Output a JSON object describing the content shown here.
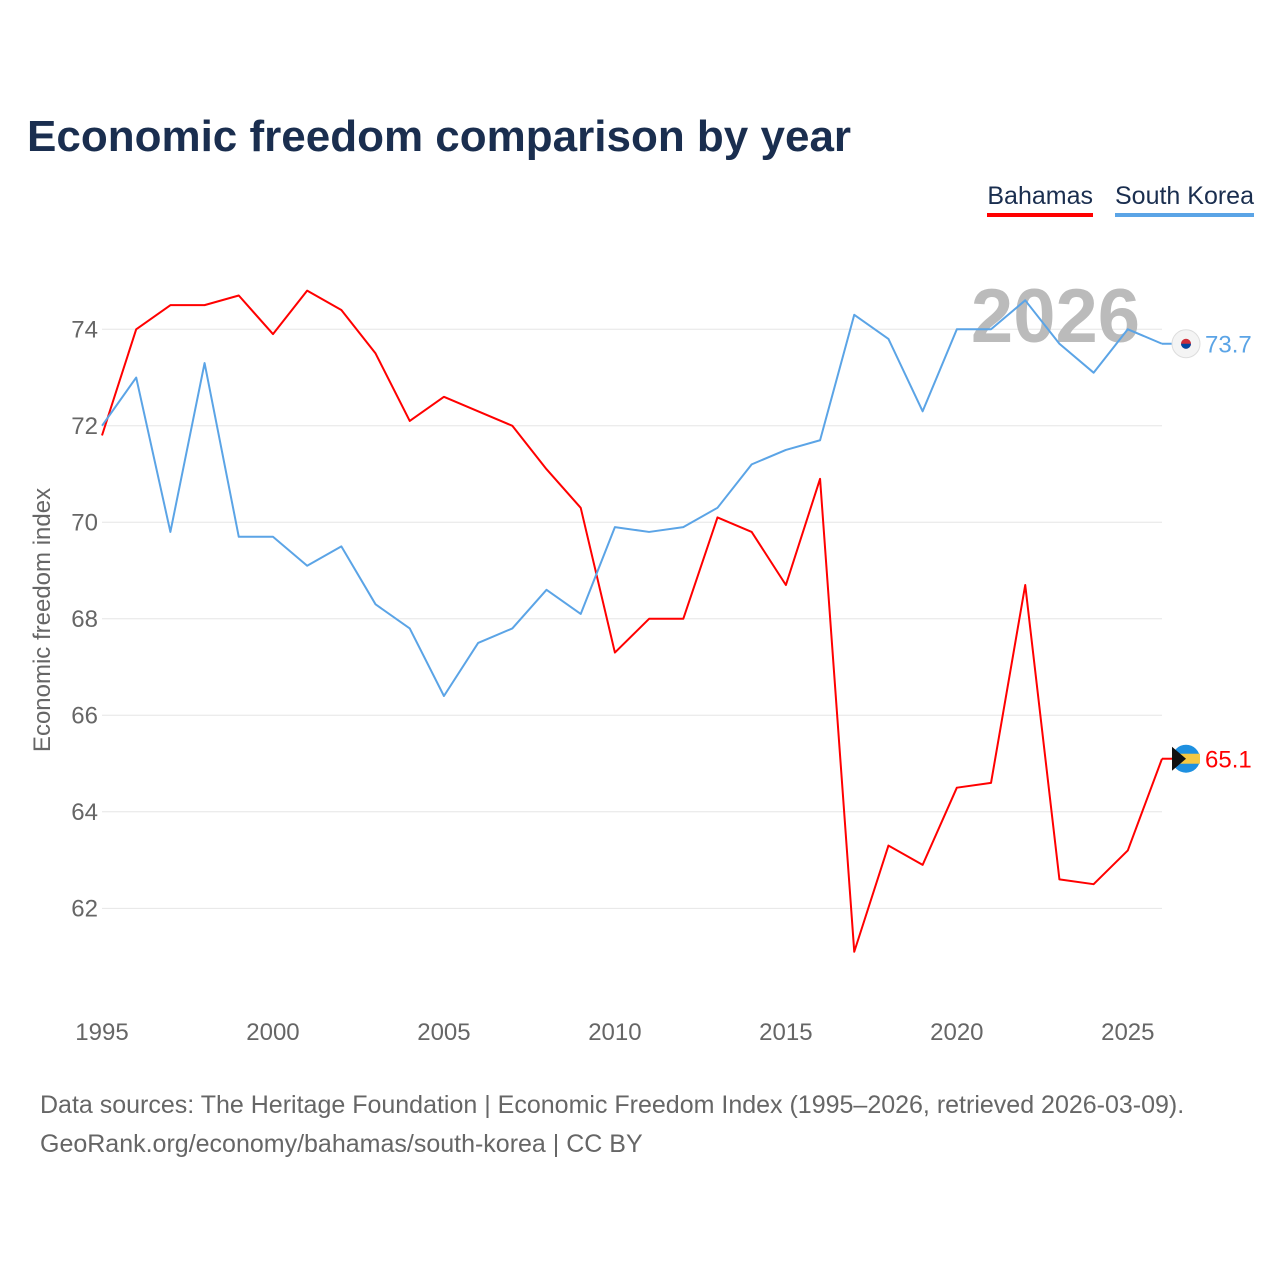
{
  "title": "Economic freedom comparison by year",
  "source_line1": "Data sources: The Heritage Foundation | Economic Freedom Index (1995–2026, retrieved 2026-03-09).",
  "source_line2": "GeoRank.org/economy/bahamas/south-korea | CC BY",
  "chart_data": {
    "type": "line",
    "title": "Economic freedom comparison by year",
    "xlabel": "",
    "ylabel": "Economic freedom index",
    "year_watermark": "2026",
    "x": [
      1995,
      1996,
      1997,
      1998,
      1999,
      2000,
      2001,
      2002,
      2003,
      2004,
      2005,
      2006,
      2007,
      2008,
      2009,
      2010,
      2011,
      2012,
      2013,
      2014,
      2015,
      2016,
      2017,
      2018,
      2019,
      2020,
      2021,
      2022,
      2023,
      2024,
      2025,
      2026
    ],
    "xticks": [
      "1995",
      "2000",
      "2005",
      "2010",
      "2015",
      "2020",
      "2025"
    ],
    "yticks": [
      "62",
      "64",
      "66",
      "68",
      "70",
      "72",
      "74"
    ],
    "xlim": [
      1995,
      2026
    ],
    "ylim": [
      60.1,
      75.85
    ],
    "grid": true,
    "legend_position": "top-right",
    "series": [
      {
        "name": "Bahamas",
        "color": "#ff0000",
        "end_label": "65.1",
        "values": [
          71.8,
          74.0,
          74.5,
          74.5,
          74.7,
          73.9,
          74.8,
          74.4,
          73.5,
          72.1,
          72.6,
          72.3,
          72.0,
          71.1,
          70.3,
          67.3,
          68.0,
          68.0,
          70.1,
          69.8,
          68.7,
          70.9,
          61.1,
          63.3,
          62.9,
          64.5,
          64.6,
          68.7,
          62.6,
          62.5,
          63.2,
          65.1
        ]
      },
      {
        "name": "South Korea",
        "color": "#5ba4e6",
        "end_label": "73.7",
        "values": [
          72.0,
          73.0,
          69.8,
          73.3,
          69.7,
          69.7,
          69.1,
          69.5,
          68.3,
          67.8,
          66.4,
          67.5,
          67.8,
          68.6,
          68.1,
          69.9,
          69.8,
          69.9,
          70.3,
          71.2,
          71.5,
          71.7,
          74.3,
          73.8,
          72.3,
          74.0,
          74.0,
          74.6,
          73.7,
          73.1,
          74.0,
          73.7
        ]
      }
    ]
  }
}
